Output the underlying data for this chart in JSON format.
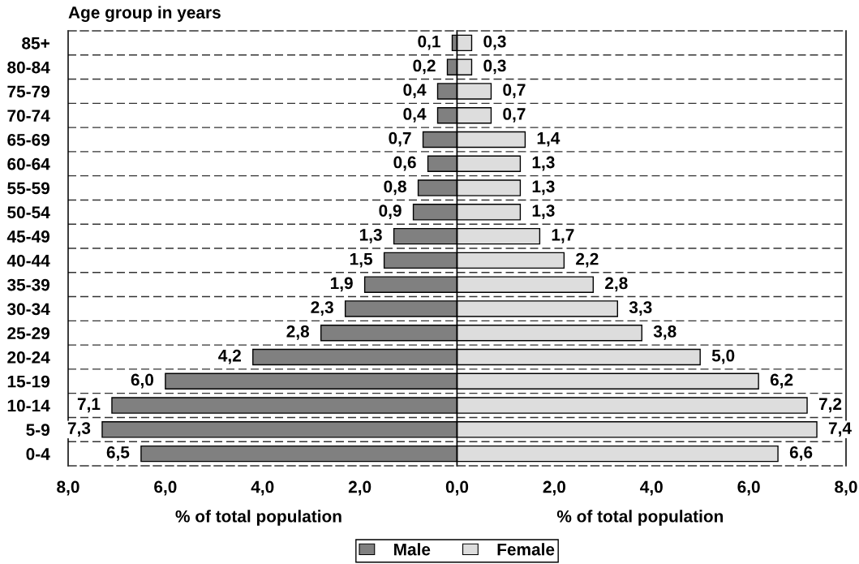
{
  "chart_data": [
    {
      "type": "bar",
      "orientation": "horizontal",
      "ylabel": "Age group in years",
      "xlabel": "% of total population",
      "categories": [
        "85+",
        "80-84",
        "75-79",
        "70-74",
        "65-69",
        "60-64",
        "55-59",
        "50-54",
        "45-49",
        "40-44",
        "35-39",
        "30-34",
        "25-29",
        "20-24",
        "15-19",
        "10-14",
        "5-9",
        "0-4"
      ],
      "series": [
        {
          "name": "Male",
          "color": "#808080",
          "values": [
            0.1,
            0.2,
            0.4,
            0.4,
            0.7,
            0.6,
            0.8,
            0.9,
            1.3,
            1.5,
            1.9,
            2.3,
            2.8,
            4.2,
            6.0,
            7.1,
            7.3,
            6.5
          ],
          "value_labels": [
            "0,1",
            "0,2",
            "0,4",
            "0,4",
            "0,7",
            "0,6",
            "0,8",
            "0,9",
            "1,3",
            "1,5",
            "1,9",
            "2,3",
            "2,8",
            "4,2",
            "6,0",
            "7,1",
            "7,3",
            "6,5"
          ]
        }
      ],
      "xlim": [
        8,
        0
      ],
      "xticks": [
        {
          "value": 8,
          "label": "8,0"
        },
        {
          "value": 6,
          "label": "6,0"
        },
        {
          "value": 4,
          "label": "4,0"
        },
        {
          "value": 2,
          "label": "2,0"
        },
        {
          "value": 0,
          "label": null
        }
      ],
      "grid": "y",
      "legend": "bottom"
    },
    {
      "type": "bar",
      "orientation": "horizontal",
      "xlabel": "% of total population",
      "categories": [
        null,
        null,
        null,
        null,
        null,
        null,
        null,
        null,
        null,
        null,
        null,
        null,
        null,
        null,
        null,
        null,
        null,
        null
      ],
      "series": [
        {
          "name": "Female",
          "color": "#dddddd",
          "values": [
            0.3,
            0.3,
            0.7,
            0.7,
            1.4,
            1.3,
            1.3,
            1.3,
            1.7,
            2.2,
            2.8,
            3.3,
            3.8,
            5.0,
            6.2,
            7.2,
            7.4,
            6.6
          ],
          "value_labels": [
            "0,3",
            "0,3",
            "0,7",
            "0,7",
            "1,4",
            "1,3",
            "1,3",
            "1,3",
            "1,7",
            "2,2",
            "2,8",
            "3,3",
            "3,8",
            "5,0",
            "6,2",
            "7,2",
            "7,4",
            "6,6"
          ]
        }
      ],
      "xlim": [
        0,
        8
      ],
      "xticks": [
        {
          "value": 0,
          "label": "0,0"
        },
        {
          "value": 2,
          "label": "2,0"
        },
        {
          "value": 4,
          "label": "4,0"
        },
        {
          "value": 6,
          "label": "6,0"
        },
        {
          "value": 8,
          "label": "8,0"
        }
      ],
      "grid": "y",
      "legend": "bottom"
    }
  ]
}
